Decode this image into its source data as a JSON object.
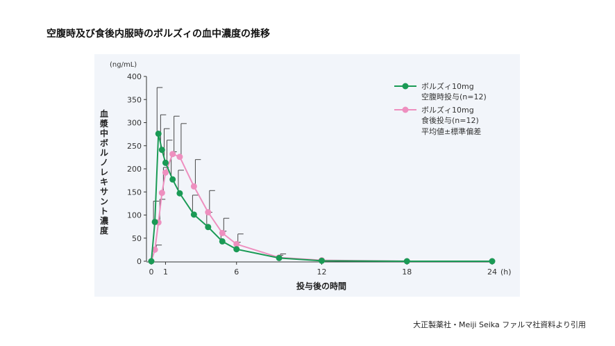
{
  "title": "空腹時及び食後内服時のボルズィの血中濃度の推移",
  "source": "大正製薬社・Meiji Seika ファルマ社資料より引用",
  "chart_data": {
    "type": "line",
    "ylabel": "血漿中ボルノレキサント濃度",
    "yunit": "(ng/mL)",
    "xlabel": "投与後の時間",
    "xunit": "(h)",
    "xlim": [
      0,
      24
    ],
    "ylim": [
      0,
      400
    ],
    "xticks": [
      0,
      1,
      6,
      12,
      18,
      24
    ],
    "yticks": [
      0,
      50,
      100,
      150,
      200,
      250,
      300,
      350,
      400
    ],
    "note": "平均値±標準偏差",
    "legend_position": "top-right",
    "series": [
      {
        "name_line1": "ボルズィ10mg",
        "name_line2": "空腹時投与(n=12)",
        "color": "#1a9a55",
        "x": [
          0,
          0.25,
          0.5,
          0.75,
          1,
          1.5,
          2,
          3,
          4,
          5,
          6,
          9,
          12,
          18,
          24
        ],
        "y": [
          0,
          85,
          276,
          241,
          213,
          177,
          147,
          101,
          74,
          43,
          26,
          7,
          1,
          0,
          0
        ],
        "err": [
          0,
          45,
          100,
          76,
          74,
          60,
          50,
          42,
          32,
          22,
          15,
          6,
          0,
          0,
          0
        ]
      },
      {
        "name_line1": "ボルズィ10mg",
        "name_line2": "食後投与(n=12)",
        "color": "#ee8fbf",
        "x": [
          0,
          0.25,
          0.5,
          0.75,
          1,
          1.5,
          2,
          3,
          4,
          5,
          6,
          9,
          12,
          18,
          24
        ],
        "y": [
          0,
          25,
          84,
          148,
          192,
          232,
          226,
          162,
          106,
          61,
          37,
          8,
          2,
          0,
          0
        ],
        "err": [
          0,
          10,
          50,
          55,
          70,
          82,
          72,
          58,
          47,
          32,
          22,
          8,
          0,
          0,
          0
        ]
      }
    ]
  }
}
